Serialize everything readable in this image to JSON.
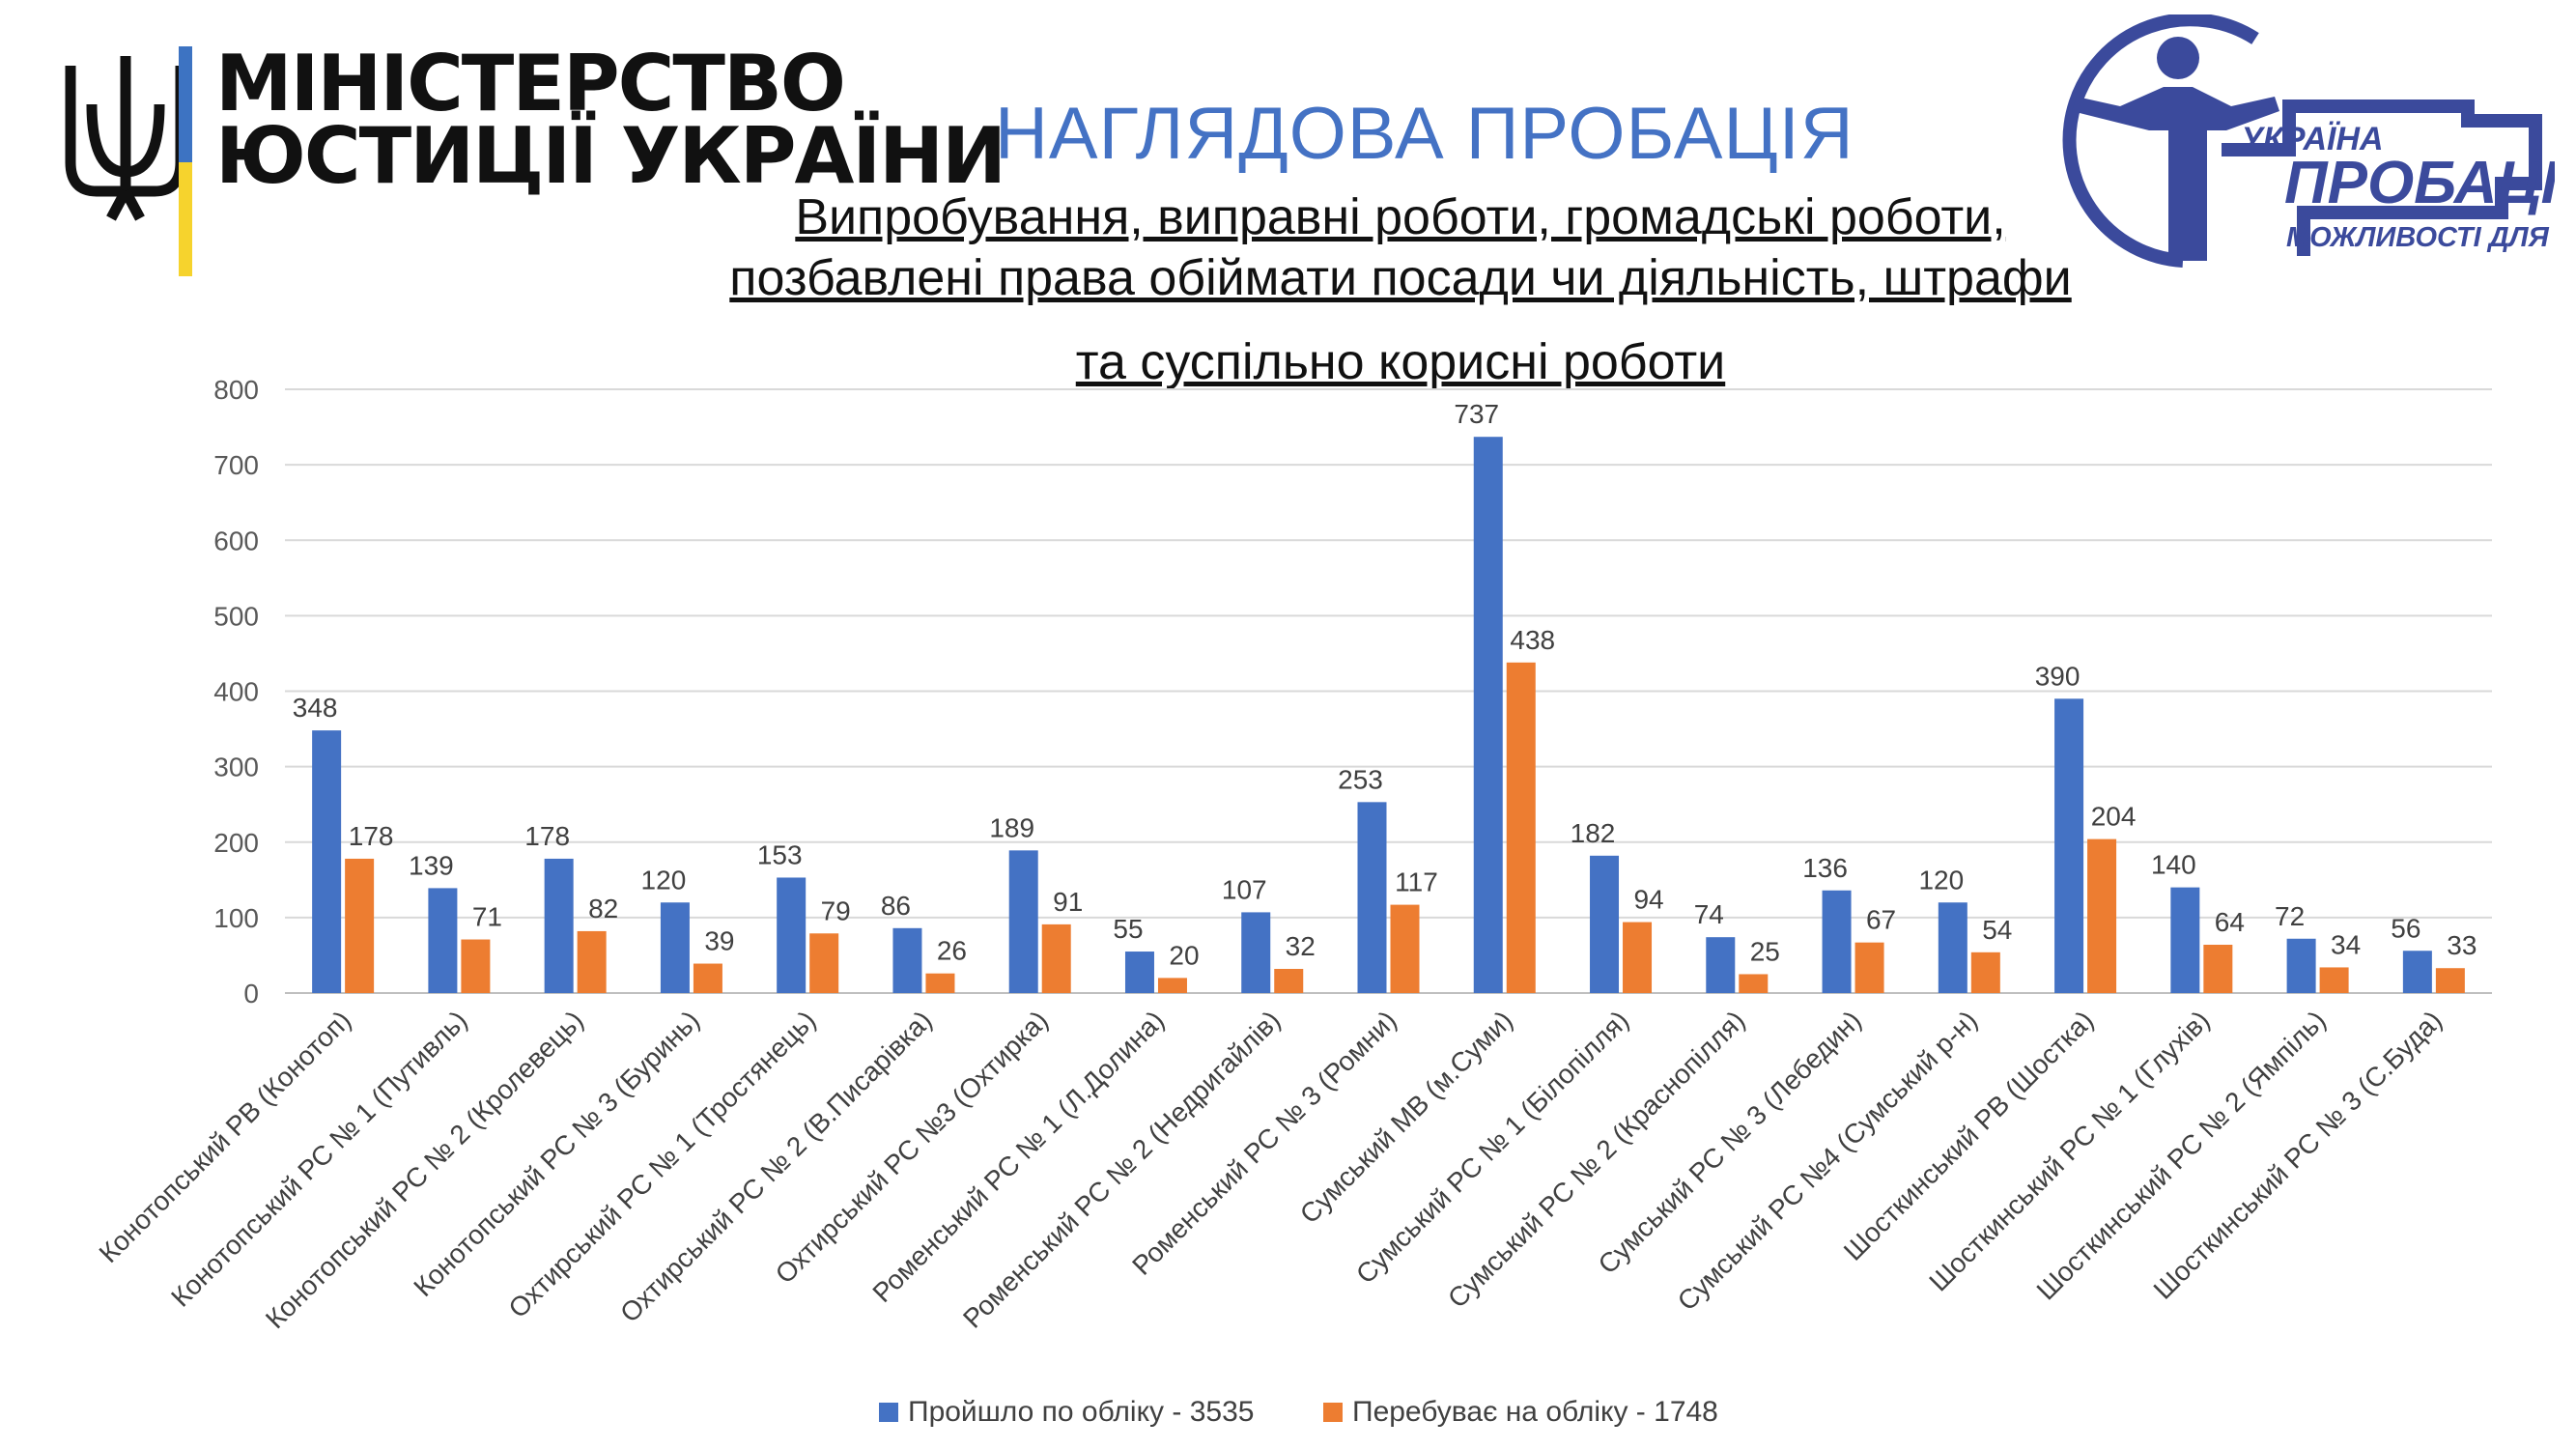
{
  "ministry": {
    "line1": "МІНІСТЕРСТВО",
    "line2": "ЮСТИЦІЇ УКРАЇНИ"
  },
  "title": "НАГЛЯДОВА ПРОБАЦІЯ",
  "subtitle": {
    "line1": "Випробування, виправні роботи, громадські роботи,",
    "line2": "позбавлені права обіймати посади чи діяльність, штрафи",
    "line3": "та суспільно корисні роботи"
  },
  "probation_logo": {
    "country": "УКРАЇНА",
    "name": "ПРОБАЦІЯ",
    "slogan": "МОЖЛИВОСТІ ДЛЯ ЗМІН"
  },
  "colors": {
    "series1": "#4472C4",
    "series2": "#ED7D31",
    "title": "#4472C4",
    "logo": "#3B4A9C",
    "flag_blue": "#3D73C2",
    "flag_yellow": "#F6D32D"
  },
  "chart_data": {
    "type": "bar",
    "title": "",
    "xlabel": "",
    "ylabel": "",
    "ylim": [
      0,
      800
    ],
    "yticks": [
      0,
      100,
      200,
      300,
      400,
      500,
      600,
      700,
      800
    ],
    "legend_position": "bottom",
    "categories": [
      "Конотопський РВ (Конотоп)",
      "Конотопський РС № 1 (Путивль)",
      "Конотопський РС № 2 (Кролевець)",
      "Конотопський РС № 3 (Буринь)",
      "Охтирський РС № 1 (Тростянець)",
      "Охтирський РС № 2 (В.Писарівка)",
      "Охтирський РС №3 (Охтирка)",
      "Роменський РС № 1 (Л.Долина)",
      "Роменський РС № 2 (Недригайлів)",
      "Роменський РС № 3 (Ромни)",
      "Сумський МВ (м.Суми)",
      "Сумський РС № 1 (Білопілля)",
      "Сумський РС № 2 (Краснопілля)",
      "Сумський РС № 3 (Лебедин)",
      "Сумський РС №4 (Сумський р-н)",
      "Шосткинський РВ (Шостка)",
      "Шосткинський РС № 1 (Глухів)",
      "Шосткинський РС № 2 (Ямпіль)",
      "Шосткинський РС № 3 (С.Буда)"
    ],
    "series": [
      {
        "name": "Пройшло по обліку - 3535",
        "color": "#4472C4",
        "values": [
          348,
          139,
          178,
          120,
          153,
          86,
          189,
          55,
          107,
          253,
          737,
          182,
          74,
          136,
          120,
          390,
          140,
          72,
          56
        ]
      },
      {
        "name": "Перебуває на обліку - 1748",
        "color": "#ED7D31",
        "values": [
          178,
          71,
          82,
          39,
          79,
          26,
          91,
          20,
          32,
          117,
          438,
          94,
          25,
          67,
          54,
          204,
          64,
          34,
          33
        ]
      }
    ]
  }
}
